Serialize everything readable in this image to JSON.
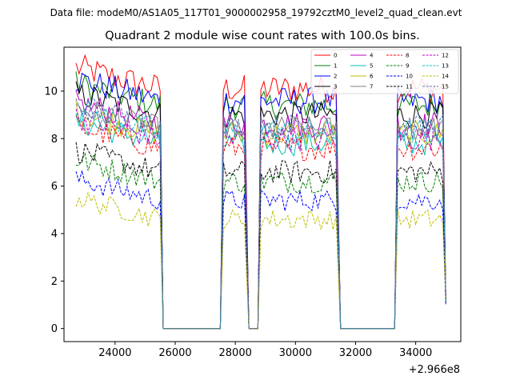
{
  "chart_data": {
    "type": "line",
    "suptitle": "Data file: modeM0/AS1A05_117T01_9000002958_19792cztM0_level2_quad_clean.evt",
    "title": "Quadrant 2 module wise count rates with 100.0s bins.",
    "xlabel": "",
    "ylabel": "",
    "x_offset_label": "+2.966e8",
    "xlim": [
      22300,
      35500
    ],
    "ylim": [
      -0.55,
      11.85
    ],
    "x_ticks": [
      24000,
      26000,
      28000,
      30000,
      32000,
      34000
    ],
    "x_tick_labels": [
      "24000",
      "26000",
      "28000",
      "30000",
      "32000",
      "34000"
    ],
    "y_ticks": [
      0,
      2,
      4,
      6,
      8,
      10
    ],
    "y_tick_labels": [
      "0",
      "2",
      "4",
      "6",
      "8",
      "10"
    ],
    "grid": false,
    "legend_position": "top-right",
    "bin_size_s": 100,
    "gti_segments": [
      {
        "start": 22700,
        "end": 25500
      },
      {
        "start": 27600,
        "end": 28350
      },
      {
        "start": 28850,
        "end": 31400
      },
      {
        "start": 33400,
        "end": 35000
      }
    ],
    "series": [
      {
        "name": "0",
        "color": "#ff0000",
        "dash": "solid",
        "level": 10.1
      },
      {
        "name": "1",
        "color": "#008000",
        "dash": "solid",
        "level": 9.4
      },
      {
        "name": "2",
        "color": "#0000ff",
        "dash": "solid",
        "level": 9.6
      },
      {
        "name": "3",
        "color": "#000000",
        "dash": "solid",
        "level": 9.0
      },
      {
        "name": "4",
        "color": "#bf00bf",
        "dash": "solid",
        "level": 8.6
      },
      {
        "name": "5",
        "color": "#00bfbf",
        "dash": "solid",
        "level": 7.8
      },
      {
        "name": "6",
        "color": "#bfbf00",
        "dash": "solid",
        "level": 8.2
      },
      {
        "name": "7",
        "color": "#808080",
        "dash": "solid",
        "level": 8.4
      },
      {
        "name": "8",
        "color": "#ff0000",
        "dash": "dashed",
        "level": 7.6
      },
      {
        "name": "9",
        "color": "#008000",
        "dash": "dashed",
        "level": 6.2
      },
      {
        "name": "10",
        "color": "#0000ff",
        "dash": "dashed",
        "level": 5.4
      },
      {
        "name": "11",
        "color": "#000000",
        "dash": "dashed",
        "level": 6.6
      },
      {
        "name": "12",
        "color": "#bf00bf",
        "dash": "dashed",
        "level": 8.0
      },
      {
        "name": "13",
        "color": "#00bfbf",
        "dash": "dashed",
        "level": 8.3
      },
      {
        "name": "14",
        "color": "#bfbf00",
        "dash": "dashed",
        "level": 4.6
      },
      {
        "name": "15",
        "color": "#4d6fb3",
        "dash": "dashed",
        "level": 8.5
      }
    ]
  }
}
